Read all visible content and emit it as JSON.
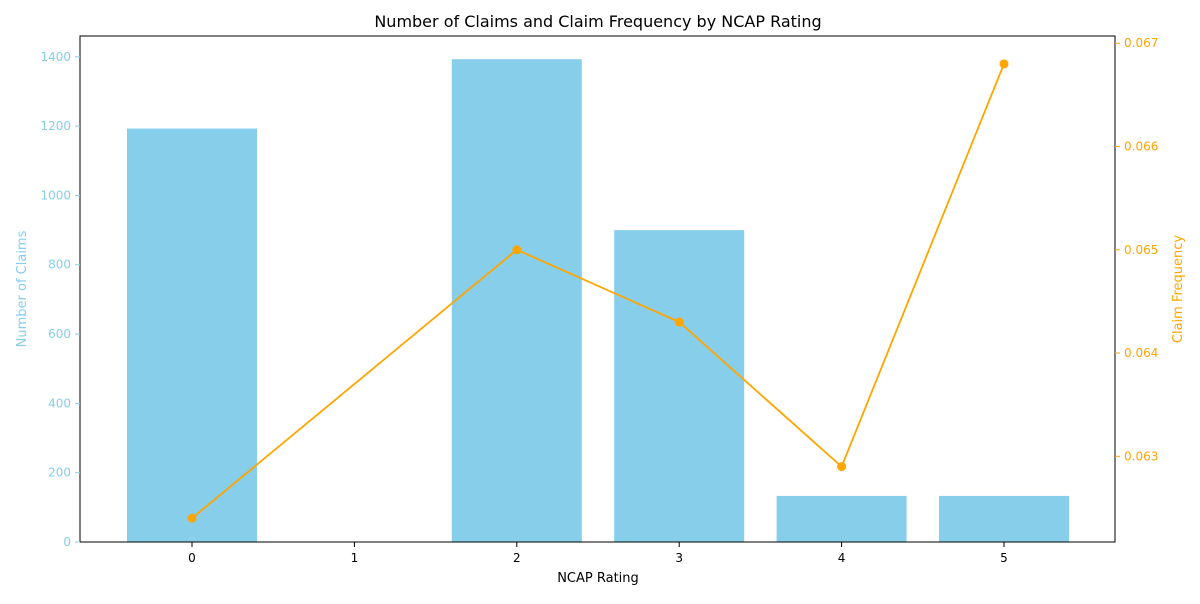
{
  "chart_data": {
    "type": "bar+line",
    "title": "Number of Claims and Claim Frequency by NCAP Rating",
    "xlabel": "NCAP Rating",
    "ylabel_left": "Number of Claims",
    "ylabel_right": "Claim Frequency",
    "categories": [
      "0",
      "1",
      "2",
      "3",
      "4",
      "5"
    ],
    "ylim_left": [
      0,
      1460
    ],
    "yticks_left": [
      0,
      200,
      400,
      600,
      800,
      1000,
      1200,
      1400
    ],
    "ylim_right": [
      0.06217,
      0.06707
    ],
    "yticks_right": [
      "0.063",
      "0.064",
      "0.065",
      "0.066",
      "0.067"
    ],
    "bars": {
      "name": "Number of Claims",
      "values": [
        1193,
        0,
        1393,
        900,
        133,
        133
      ],
      "color": "#87ceeb"
    },
    "line": {
      "name": "Claim Frequency",
      "values": [
        0.0624,
        null,
        0.065,
        0.0643,
        0.0629,
        0.0668
      ],
      "color": "#ffa500"
    },
    "grid": false,
    "legend": "none"
  }
}
